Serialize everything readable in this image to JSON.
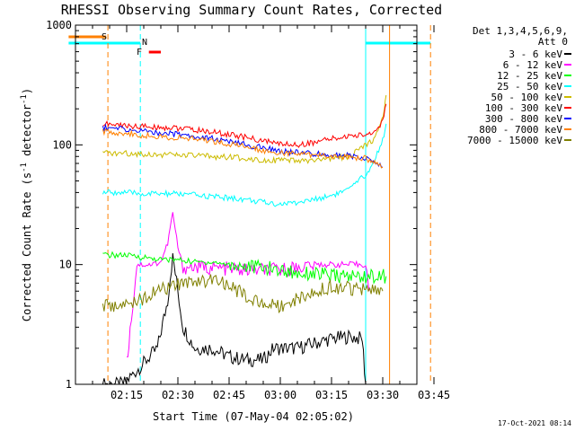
{
  "chart_data": {
    "type": "line",
    "title": "RHESSI Observing Summary Count Rates, Corrected",
    "xlabel": "Start Time (07-May-04 02:05:02)",
    "ylabel_prefix": "Corrected Count Rate (s",
    "ylabel_sup": "-1",
    "ylabel_suffix": " detector",
    "ylabel_sup2": "-1",
    "ylabel_close": ")",
    "y_scale": "log",
    "ylim": [
      1,
      1000
    ],
    "xlim": [
      "02:05:02",
      "03:45:00"
    ],
    "x_ticks": [
      {
        "t": 15,
        "label": "02:15"
      },
      {
        "t": 30,
        "label": "02:30"
      },
      {
        "t": 45,
        "label": "02:45"
      },
      {
        "t": 60,
        "label": "03:00"
      },
      {
        "t": 75,
        "label": "03:15"
      },
      {
        "t": 90,
        "label": "03:30"
      },
      {
        "t": 105,
        "label": "03:45"
      }
    ],
    "y_ticks": [
      {
        "v": 1,
        "label": "1"
      },
      {
        "v": 10,
        "label": "10"
      },
      {
        "v": 100,
        "label": "100"
      },
      {
        "v": 1000,
        "label": "1000"
      }
    ],
    "legend_position": "right",
    "legend_header": [
      "Det 1,3,4,5,6,9,",
      "Att 0"
    ],
    "series": [
      {
        "name": "3 - 6 keV",
        "color": "#000000",
        "points": [
          [
            8,
            1
          ],
          [
            14,
            1
          ],
          [
            20,
            1.5
          ],
          [
            24,
            2
          ],
          [
            27,
            5
          ],
          [
            28.5,
            12
          ],
          [
            30,
            6
          ],
          [
            31.5,
            3
          ],
          [
            35,
            2
          ],
          [
            40,
            2
          ],
          [
            45,
            1.7
          ],
          [
            50,
            1.6
          ],
          [
            55,
            1.6
          ],
          [
            58,
            2
          ],
          [
            62,
            2
          ],
          [
            65,
            2
          ],
          [
            70,
            2.2
          ],
          [
            75,
            2.4
          ],
          [
            80,
            2.5
          ],
          [
            84,
            2.4
          ],
          [
            85,
            1
          ]
        ]
      },
      {
        "name": "6 - 12 keV",
        "color": "#ff00ff",
        "points": [
          [
            15,
            1.5
          ],
          [
            16,
            2.8
          ],
          [
            18,
            10
          ],
          [
            22,
            10
          ],
          [
            25,
            10.5
          ],
          [
            27,
            15
          ],
          [
            28.5,
            27
          ],
          [
            30,
            14
          ],
          [
            31.5,
            9.5
          ],
          [
            35,
            9.5
          ],
          [
            40,
            9.4
          ],
          [
            45,
            9.2
          ],
          [
            50,
            9
          ],
          [
            55,
            9
          ],
          [
            60,
            9
          ],
          [
            65,
            9.5
          ],
          [
            70,
            10
          ],
          [
            75,
            10
          ],
          [
            80,
            10
          ],
          [
            85,
            10
          ],
          [
            86,
            6
          ]
        ]
      },
      {
        "name": "12 - 25 keV",
        "color": "#00ff00",
        "points": [
          [
            8,
            12
          ],
          [
            14,
            12
          ],
          [
            20,
            11.5
          ],
          [
            25,
            11
          ],
          [
            30,
            11
          ],
          [
            35,
            10.5
          ],
          [
            40,
            10.5
          ],
          [
            45,
            10
          ],
          [
            50,
            9.7
          ],
          [
            55,
            9.5
          ],
          [
            60,
            9
          ],
          [
            65,
            8.5
          ],
          [
            70,
            8.5
          ],
          [
            75,
            8
          ],
          [
            80,
            8
          ],
          [
            85,
            8
          ],
          [
            91,
            8
          ]
        ]
      },
      {
        "name": "25 - 50 keV",
        "color": "#00ffff",
        "points": [
          [
            8,
            40
          ],
          [
            14,
            40
          ],
          [
            20,
            39
          ],
          [
            25,
            39
          ],
          [
            30,
            39
          ],
          [
            35,
            38
          ],
          [
            40,
            37
          ],
          [
            45,
            36
          ],
          [
            50,
            35
          ],
          [
            55,
            33
          ],
          [
            60,
            32
          ],
          [
            65,
            33
          ],
          [
            70,
            35
          ],
          [
            75,
            38
          ],
          [
            80,
            42
          ],
          [
            83,
            50
          ],
          [
            86,
            60
          ],
          [
            88,
            80
          ],
          [
            90,
            110
          ],
          [
            91,
            150
          ]
        ]
      },
      {
        "name": "50 - 100 keV",
        "color": "#ccbb00",
        "points": [
          [
            8,
            85
          ],
          [
            14,
            85
          ],
          [
            20,
            84
          ],
          [
            25,
            83
          ],
          [
            30,
            82
          ],
          [
            35,
            81
          ],
          [
            40,
            80
          ],
          [
            45,
            79
          ],
          [
            50,
            77
          ],
          [
            55,
            75
          ],
          [
            60,
            74
          ],
          [
            65,
            73
          ],
          [
            70,
            74
          ],
          [
            75,
            76
          ],
          [
            80,
            80
          ],
          [
            83,
            90
          ],
          [
            85,
            100
          ],
          [
            87,
            110
          ],
          [
            89,
            140
          ],
          [
            90.5,
            200
          ],
          [
            91,
            260
          ]
        ]
      },
      {
        "name": "100 - 300 keV",
        "color": "#ff0000",
        "points": [
          [
            8,
            150
          ],
          [
            14,
            145
          ],
          [
            20,
            142
          ],
          [
            25,
            140
          ],
          [
            30,
            138
          ],
          [
            35,
            133
          ],
          [
            40,
            128
          ],
          [
            45,
            122
          ],
          [
            50,
            115
          ],
          [
            55,
            108
          ],
          [
            60,
            102
          ],
          [
            65,
            100
          ],
          [
            70,
            105
          ],
          [
            75,
            112
          ],
          [
            80,
            118
          ],
          [
            85,
            122
          ],
          [
            88,
            130
          ],
          [
            90,
            160
          ],
          [
            91,
            220
          ]
        ]
      },
      {
        "name": "300 - 800 keV",
        "color": "#0000ff",
        "points": [
          [
            8,
            140
          ],
          [
            14,
            135
          ],
          [
            20,
            130
          ],
          [
            25,
            126
          ],
          [
            30,
            122
          ],
          [
            35,
            118
          ],
          [
            40,
            113
          ],
          [
            45,
            106
          ],
          [
            50,
            100
          ],
          [
            55,
            94
          ],
          [
            60,
            89
          ],
          [
            65,
            86
          ],
          [
            70,
            84
          ],
          [
            75,
            83
          ],
          [
            80,
            81
          ],
          [
            85,
            78
          ],
          [
            88,
            70
          ],
          [
            90,
            65
          ]
        ]
      },
      {
        "name": "800 - 7000 keV",
        "color": "#ff8000",
        "points": [
          [
            8,
            130
          ],
          [
            14,
            125
          ],
          [
            20,
            120
          ],
          [
            25,
            117
          ],
          [
            30,
            114
          ],
          [
            35,
            112
          ],
          [
            40,
            108
          ],
          [
            45,
            102
          ],
          [
            50,
            96
          ],
          [
            55,
            90
          ],
          [
            60,
            86
          ],
          [
            65,
            84
          ],
          [
            70,
            82
          ],
          [
            75,
            81
          ],
          [
            80,
            80
          ],
          [
            85,
            77
          ],
          [
            88,
            70
          ],
          [
            90,
            65
          ]
        ]
      },
      {
        "name": "7000 - 15000 keV",
        "color": "#808000",
        "points": [
          [
            8,
            4.5
          ],
          [
            14,
            4.5
          ],
          [
            18,
            5
          ],
          [
            22,
            5.5
          ],
          [
            24,
            6
          ],
          [
            26,
            6.3
          ],
          [
            28,
            6.5
          ],
          [
            32,
            7
          ],
          [
            36,
            7.5
          ],
          [
            40,
            7.3
          ],
          [
            45,
            6.7
          ],
          [
            50,
            5.5
          ],
          [
            52,
            5
          ],
          [
            55,
            4.9
          ],
          [
            60,
            4.5
          ],
          [
            65,
            5.2
          ],
          [
            70,
            6
          ],
          [
            75,
            6.5
          ],
          [
            80,
            6.3
          ],
          [
            85,
            6.3
          ],
          [
            89,
            6
          ],
          [
            90,
            6
          ]
        ]
      }
    ],
    "flag_lines": [
      {
        "label": "S",
        "color": "#ff8000"
      },
      {
        "label": "N",
        "color": "#00ffff"
      },
      {
        "label": "F",
        "color": "#ff0000"
      }
    ]
  },
  "footer": {
    "timestamp": "17-Oct-2021 08:14"
  }
}
